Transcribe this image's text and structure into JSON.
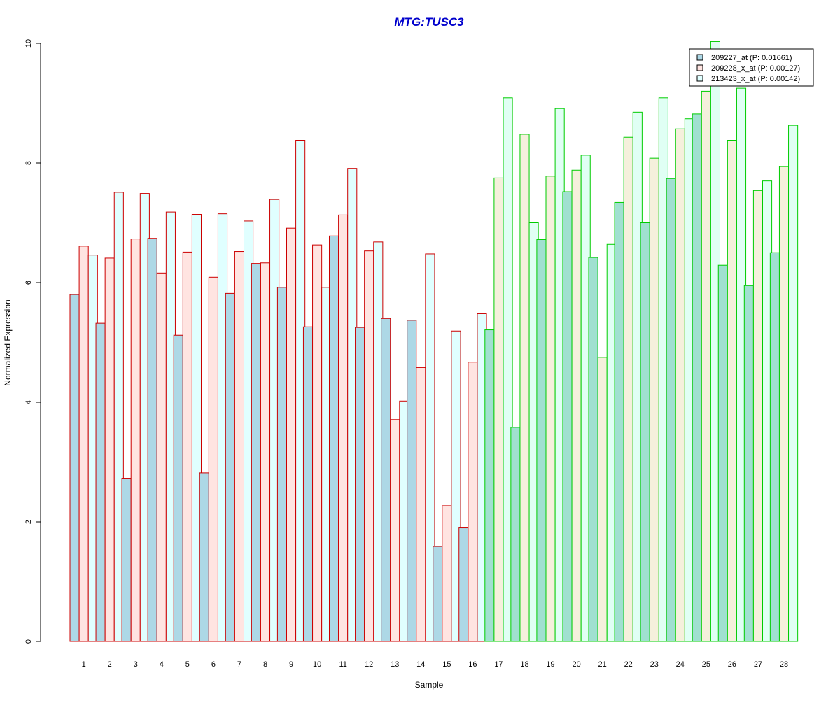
{
  "chart_data": {
    "type": "bar",
    "title": "MTG:TUSC3",
    "xlabel": "Sample",
    "ylabel": "Normalized Expression",
    "ylim": [
      0,
      10
    ],
    "yticks": [
      "0",
      "2",
      "4",
      "6",
      "8",
      "10"
    ],
    "grid": false,
    "legend_position": "top-right",
    "categories": [
      "1",
      "2",
      "3",
      "4",
      "5",
      "6",
      "7",
      "8",
      "9",
      "10",
      "11",
      "12",
      "13",
      "14",
      "15",
      "16",
      "17",
      "18",
      "19",
      "20",
      "21",
      "22",
      "23",
      "24",
      "25",
      "26",
      "27",
      "28"
    ],
    "group_a_samples": 16,
    "series": [
      {
        "name": "209227_at (P: 0.01661)",
        "values": [
          5.8,
          5.32,
          2.72,
          6.74,
          5.12,
          2.82,
          5.82,
          6.32,
          5.92,
          5.26,
          6.78,
          5.25,
          5.4,
          5.37,
          1.59,
          1.9,
          5.21,
          3.58,
          6.72,
          7.52,
          6.42,
          7.34,
          7.0,
          7.74,
          8.82,
          6.29,
          5.95,
          6.5
        ]
      },
      {
        "name": "209228_x_at (P: 0.00127)",
        "values": [
          6.61,
          6.41,
          6.73,
          6.16,
          6.51,
          6.09,
          6.52,
          6.33,
          6.91,
          6.63,
          7.13,
          6.53,
          3.71,
          4.58,
          2.27,
          4.67,
          7.75,
          8.48,
          7.78,
          7.88,
          4.75,
          8.43,
          8.08,
          8.57,
          9.2,
          8.38,
          7.54,
          7.94
        ]
      },
      {
        "name": "213423_x_at (P: 0.00142)",
        "values": [
          6.46,
          7.51,
          7.49,
          7.18,
          7.14,
          7.15,
          7.03,
          7.39,
          8.38,
          5.92,
          7.91,
          6.68,
          4.02,
          6.48,
          5.19,
          5.48,
          9.09,
          7.0,
          8.91,
          8.13,
          6.64,
          8.85,
          9.09,
          8.74,
          10.03,
          9.25,
          7.7,
          8.63
        ]
      }
    ],
    "colors": {
      "title": "#0000cc",
      "group_a_border": "#cc0000",
      "group_b_border": "#00cc00",
      "group_a_fills": [
        "#add8e6",
        "#ffe4e1",
        "#e0ffff"
      ],
      "group_b_fills": [
        "#a0e0d0",
        "#f5f0dc",
        "#e0fff4"
      ],
      "legend_fills": [
        "#add8e6",
        "#ffe4e1",
        "#e0ffff"
      ]
    }
  }
}
